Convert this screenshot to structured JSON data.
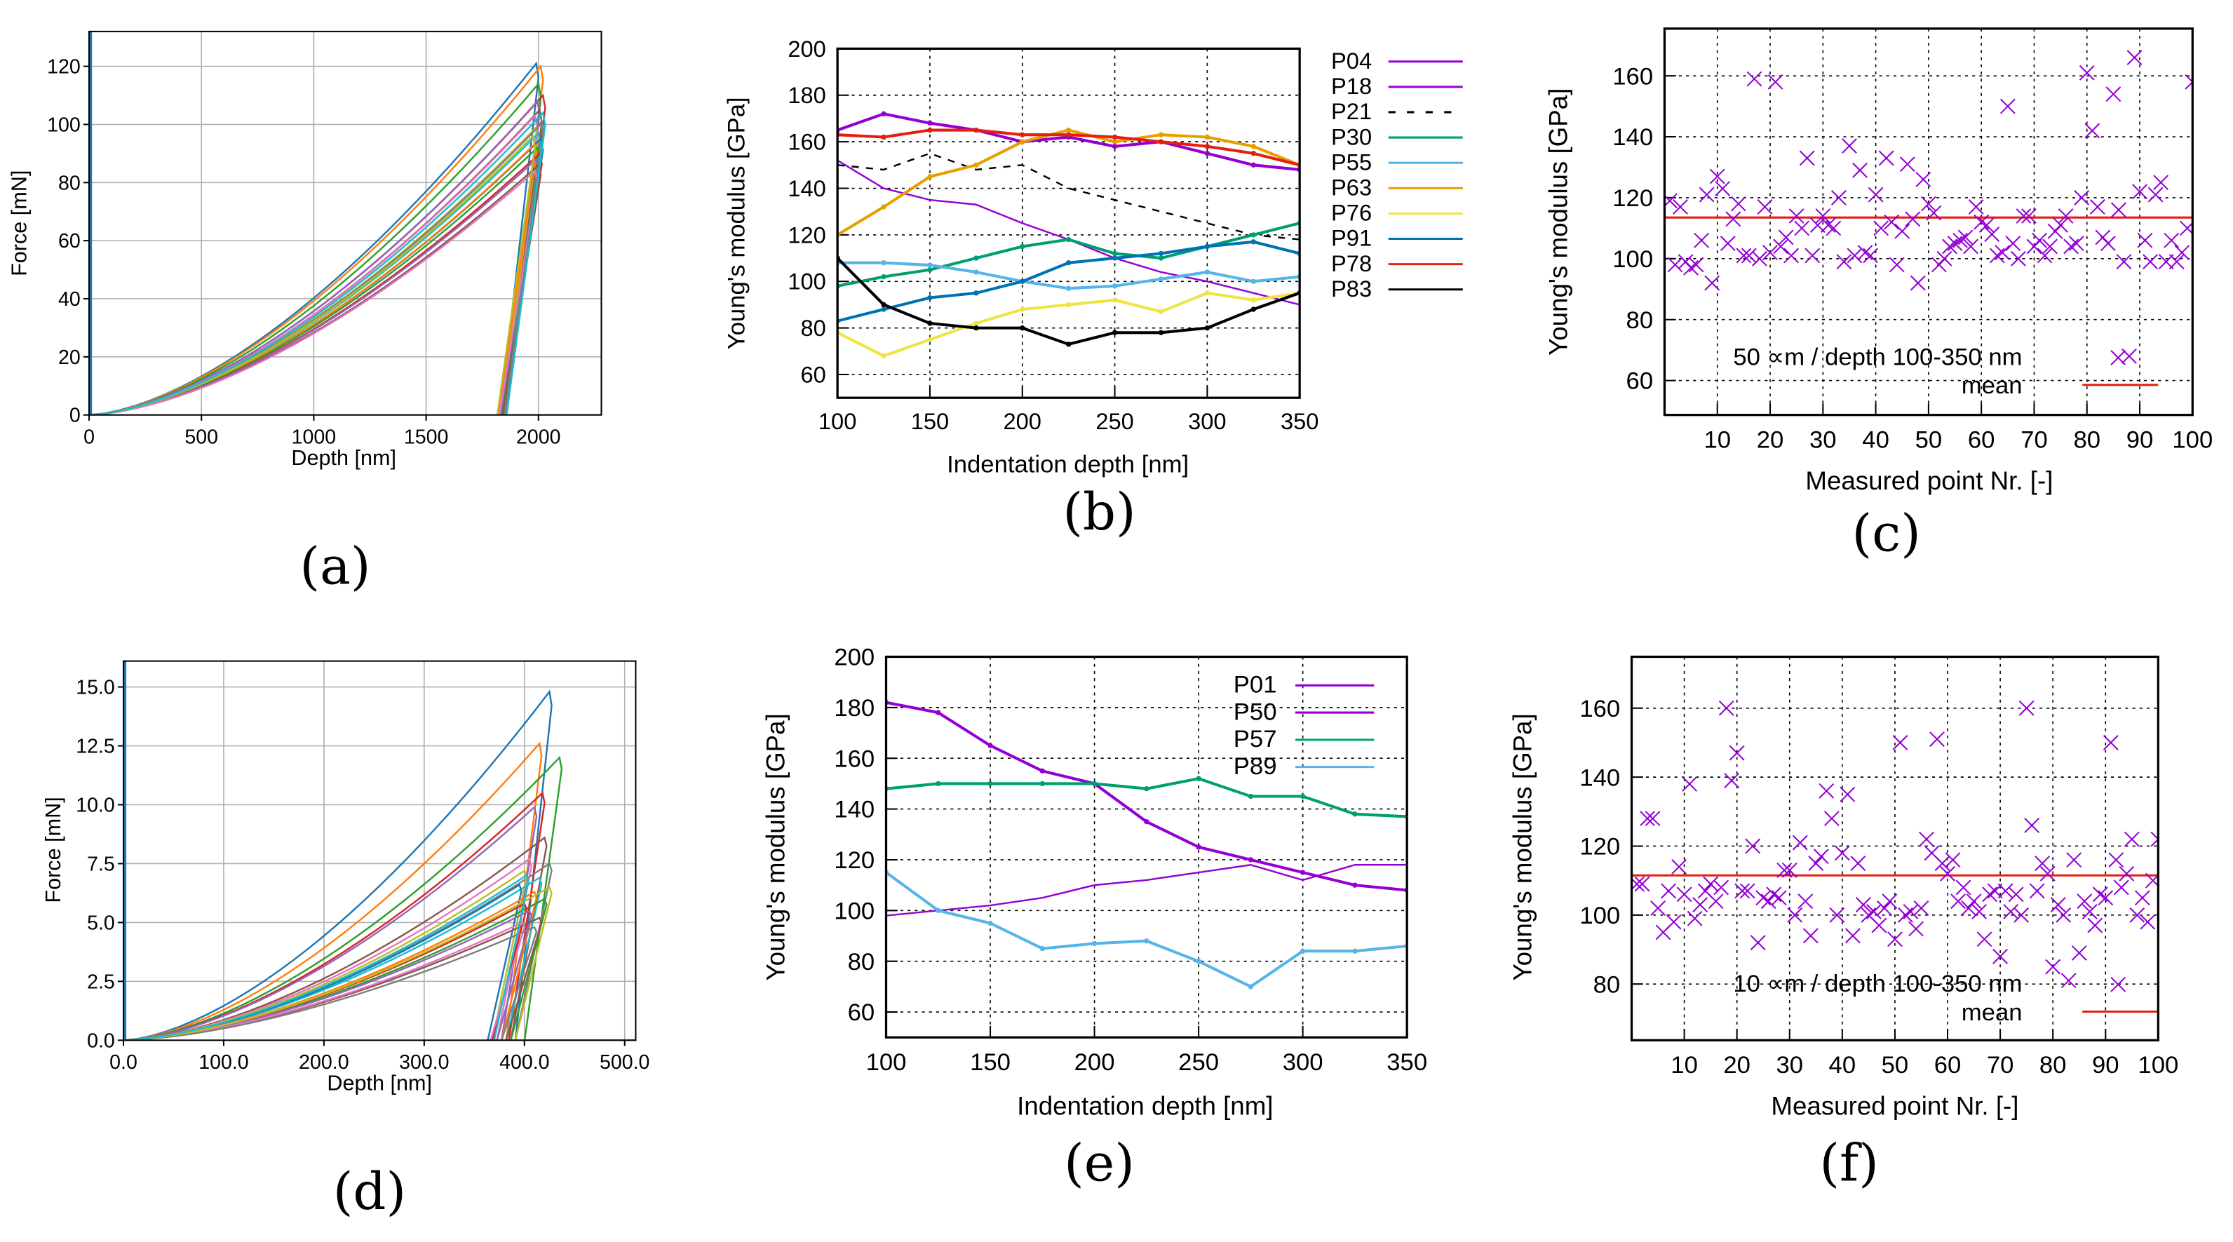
{
  "captions": [
    "(a)",
    "(b)",
    "(c)",
    "(d)",
    "(e)",
    "(f)"
  ],
  "chart_data": [
    {
      "id": "a",
      "type": "line",
      "title": "",
      "xlabel": "Depth [nm]",
      "ylabel": "Force [mN]",
      "xlim": [
        0,
        2280
      ],
      "ylim": [
        0,
        132
      ],
      "xticks": [
        0,
        500,
        1000,
        1500,
        2000
      ],
      "yticks": [
        0,
        20,
        40,
        60,
        80,
        100,
        120
      ],
      "grid": true,
      "colors": [
        "#1f77b4",
        "#ff7f0e",
        "#2ca02c",
        "#d62728",
        "#9467bd",
        "#8c564b",
        "#e377c2",
        "#7f7f7f",
        "#bcbd22",
        "#17becf"
      ],
      "curves": [
        {
          "dmax": 1990,
          "fmax": 121
        },
        {
          "dmax": 2010,
          "fmax": 120
        },
        {
          "dmax": 2000,
          "fmax": 114
        },
        {
          "dmax": 2020,
          "fmax": 110
        },
        {
          "dmax": 1995,
          "fmax": 108
        },
        {
          "dmax": 2005,
          "fmax": 105
        },
        {
          "dmax": 1985,
          "fmax": 103
        },
        {
          "dmax": 2015,
          "fmax": 101
        },
        {
          "dmax": 1990,
          "fmax": 99
        },
        {
          "dmax": 2000,
          "fmax": 97
        },
        {
          "dmax": 2010,
          "fmax": 95
        },
        {
          "dmax": 1980,
          "fmax": 93
        },
        {
          "dmax": 1995,
          "fmax": 92
        },
        {
          "dmax": 2005,
          "fmax": 90
        },
        {
          "dmax": 1990,
          "fmax": 88
        },
        {
          "dmax": 2000,
          "fmax": 86
        },
        {
          "dmax": 1985,
          "fmax": 84
        },
        {
          "dmax": 2010,
          "fmax": 100
        },
        {
          "dmax": 1975,
          "fmax": 96
        },
        {
          "dmax": 2020,
          "fmax": 104
        }
      ]
    },
    {
      "id": "b",
      "type": "line",
      "title": "",
      "xlabel": "Indentation depth [nm]",
      "ylabel": "Young's modulus [GPa]",
      "xlim": [
        100,
        350
      ],
      "ylim": [
        50,
        200
      ],
      "xticks": [
        100,
        150,
        200,
        250,
        300,
        350
      ],
      "yticks": [
        60,
        80,
        100,
        120,
        140,
        160,
        180,
        200
      ],
      "grid": true,
      "legend": "outside-right",
      "x": [
        100,
        125,
        150,
        175,
        200,
        225,
        250,
        275,
        300,
        325,
        350
      ],
      "series": [
        {
          "name": "P04",
          "color": "#9400d3",
          "marker": "none",
          "dash": false,
          "values": [
            152,
            140,
            135,
            133,
            125,
            118,
            110,
            104,
            100,
            95,
            90
          ]
        },
        {
          "name": "P18",
          "color": "#9400d3",
          "marker": "plus",
          "dash": false,
          "values": [
            165,
            172,
            168,
            165,
            160,
            162,
            158,
            160,
            155,
            150,
            148
          ]
        },
        {
          "name": "P21",
          "color": "#000000",
          "marker": "none",
          "dash": true,
          "values": [
            150,
            148,
            155,
            148,
            150,
            140,
            135,
            130,
            125,
            120,
            118
          ]
        },
        {
          "name": "P30",
          "color": "#009e73",
          "marker": "cross",
          "dash": false,
          "values": [
            98,
            102,
            105,
            110,
            115,
            118,
            112,
            110,
            115,
            120,
            125
          ]
        },
        {
          "name": "P55",
          "color": "#56b4e9",
          "marker": "star",
          "dash": false,
          "values": [
            108,
            108,
            107,
            104,
            100,
            97,
            98,
            101,
            104,
            100,
            102
          ]
        },
        {
          "name": "P63",
          "color": "#e69f00",
          "marker": "square",
          "dash": false,
          "values": [
            120,
            132,
            145,
            150,
            160,
            165,
            160,
            163,
            162,
            158,
            150
          ]
        },
        {
          "name": "P76",
          "color": "#f0e442",
          "marker": "filled-square",
          "dash": false,
          "values": [
            78,
            68,
            75,
            82,
            88,
            90,
            92,
            87,
            95,
            92,
            95
          ]
        },
        {
          "name": "P91",
          "color": "#0072b2",
          "marker": "circle",
          "dash": false,
          "values": [
            83,
            88,
            93,
            95,
            100,
            108,
            110,
            112,
            115,
            117,
            112
          ]
        },
        {
          "name": "P78",
          "color": "#e51e10",
          "marker": "dot",
          "dash": false,
          "values": [
            163,
            162,
            165,
            165,
            163,
            163,
            162,
            160,
            158,
            155,
            150
          ]
        },
        {
          "name": "P83",
          "color": "#000000",
          "marker": "triangle",
          "dash": false,
          "values": [
            110,
            90,
            82,
            80,
            80,
            73,
            78,
            78,
            80,
            88,
            95
          ]
        }
      ]
    },
    {
      "id": "c",
      "type": "scatter",
      "title": "",
      "xlabel": "Measured point Nr. [-]",
      "ylabel": "Young's modulus [GPa]",
      "xlim": [
        0,
        100
      ],
      "ylim": [
        48.7,
        175.5
      ],
      "xticks": [
        10,
        20,
        30,
        40,
        50,
        60,
        70,
        80,
        90,
        100
      ],
      "yticks": [
        60,
        80,
        100,
        120,
        140,
        160
      ],
      "grid": true,
      "legend": "bottom",
      "series_name": "50 ∝m / depth 100-350 nm",
      "mean_label": "mean",
      "mean": 113.5,
      "point_color": "#9400d3",
      "mean_color": "#e51e10",
      "values": [
        119,
        98,
        117,
        99,
        97,
        98,
        106,
        121,
        92,
        127,
        123,
        105,
        113,
        118,
        101,
        101,
        159,
        100,
        117,
        102,
        158,
        104,
        107,
        101,
        114,
        110,
        133,
        101,
        111,
        114,
        111,
        110,
        120,
        99,
        137,
        101,
        129,
        102,
        101,
        121,
        110,
        133,
        112,
        98,
        109,
        131,
        113,
        92,
        126,
        118,
        115,
        98,
        100,
        104,
        105,
        106,
        107,
        104,
        117,
        112,
        111,
        108,
        101,
        102,
        150,
        105,
        100,
        114,
        114,
        104,
        106,
        101,
        104,
        109,
        111,
        114,
        104,
        105,
        120,
        161,
        142,
        117,
        107,
        105,
        154,
        116,
        99,
        68,
        166,
        122,
        106,
        99,
        121,
        125,
        99,
        106,
        99,
        102,
        110,
        158
      ]
    },
    {
      "id": "d",
      "type": "line",
      "title": "",
      "xlabel": "Depth [nm]",
      "ylabel": "Force [mN]",
      "xlim": [
        0,
        511
      ],
      "ylim": [
        0,
        16.1
      ],
      "xticks": [
        0,
        100,
        200,
        300,
        400,
        500
      ],
      "yticks": [
        0,
        2.5,
        5,
        7.5,
        10,
        12.5,
        15
      ],
      "grid": true,
      "colors": [
        "#1f77b4",
        "#ff7f0e",
        "#2ca02c",
        "#d62728",
        "#9467bd",
        "#8c564b",
        "#e377c2",
        "#7f7f7f",
        "#bcbd22",
        "#17becf"
      ],
      "curves": [
        {
          "dmax": 425,
          "fmax": 14.8
        },
        {
          "dmax": 415,
          "fmax": 12.6
        },
        {
          "dmax": 435,
          "fmax": 12.0
        },
        {
          "dmax": 418,
          "fmax": 10.5
        },
        {
          "dmax": 410,
          "fmax": 9.9
        },
        {
          "dmax": 420,
          "fmax": 8.6
        },
        {
          "dmax": 405,
          "fmax": 7.7
        },
        {
          "dmax": 425,
          "fmax": 7.5
        },
        {
          "dmax": 400,
          "fmax": 7.2
        },
        {
          "dmax": 415,
          "fmax": 6.9
        },
        {
          "dmax": 395,
          "fmax": 6.6
        },
        {
          "dmax": 410,
          "fmax": 6.3
        },
        {
          "dmax": 420,
          "fmax": 6.0
        },
        {
          "dmax": 400,
          "fmax": 5.8
        },
        {
          "dmax": 405,
          "fmax": 5.5
        },
        {
          "dmax": 415,
          "fmax": 5.2
        },
        {
          "dmax": 398,
          "fmax": 5.0
        },
        {
          "dmax": 410,
          "fmax": 4.8
        },
        {
          "dmax": 425,
          "fmax": 6.5
        },
        {
          "dmax": 402,
          "fmax": 7.0
        }
      ]
    },
    {
      "id": "e",
      "type": "line",
      "title": "",
      "xlabel": "Indentation depth [nm]",
      "ylabel": "Young's modulus [GPa]",
      "xlim": [
        100,
        350
      ],
      "ylim": [
        50,
        200
      ],
      "xticks": [
        100,
        150,
        200,
        250,
        300,
        350
      ],
      "yticks": [
        60,
        80,
        100,
        120,
        140,
        160,
        180,
        200
      ],
      "grid": true,
      "legend": "top-right",
      "x": [
        100,
        125,
        150,
        175,
        200,
        225,
        250,
        275,
        300,
        325,
        350
      ],
      "series": [
        {
          "name": "P01",
          "color": "#9400d3",
          "marker": "none",
          "dash": false,
          "values": [
            98,
            100,
            102,
            105,
            110,
            112,
            115,
            118,
            112,
            118,
            118
          ]
        },
        {
          "name": "P50",
          "color": "#9400d3",
          "marker": "plus",
          "dash": false,
          "values": [
            182,
            178,
            165,
            155,
            150,
            135,
            125,
            120,
            115,
            110,
            108
          ]
        },
        {
          "name": "P57",
          "color": "#009e73",
          "marker": "cross",
          "dash": false,
          "values": [
            148,
            150,
            150,
            150,
            150,
            148,
            152,
            145,
            145,
            138,
            137
          ]
        },
        {
          "name": "P89",
          "color": "#56b4e9",
          "marker": "star",
          "dash": false,
          "values": [
            115,
            100,
            95,
            85,
            87,
            88,
            80,
            70,
            84,
            84,
            86
          ]
        }
      ]
    },
    {
      "id": "f",
      "type": "scatter",
      "title": "",
      "xlabel": "Measured point Nr. [-]",
      "ylabel": "Young's modulus [GPa]",
      "xlim": [
        0,
        100
      ],
      "ylim": [
        63.7,
        174.9
      ],
      "xticks": [
        10,
        20,
        30,
        40,
        50,
        60,
        70,
        80,
        90,
        100
      ],
      "yticks": [
        80,
        100,
        120,
        140,
        160
      ],
      "grid": true,
      "legend": "bottom",
      "series_name": "10 ∝m / depth 100-350 nm",
      "mean_label": "mean",
      "mean": 111.5,
      "point_color": "#9400d3",
      "mean_color": "#e51e10",
      "values": [
        109,
        109,
        128,
        128,
        102,
        95,
        107,
        98,
        114,
        106,
        138,
        99,
        103,
        107,
        109,
        104,
        108,
        160,
        139,
        147,
        107,
        107,
        120,
        92,
        105,
        104,
        106,
        105,
        113,
        113,
        100,
        121,
        104,
        94,
        115,
        117,
        136,
        128,
        100,
        118,
        135,
        94,
        115,
        103,
        100,
        101,
        97,
        102,
        104,
        93,
        150,
        100,
        101,
        96,
        102,
        122,
        118,
        151,
        115,
        112,
        116,
        104,
        108,
        102,
        104,
        101,
        93,
        106,
        107,
        88,
        107,
        101,
        106,
        100,
        160,
        126,
        107,
        115,
        112,
        85,
        103,
        100,
        81,
        116,
        89,
        104,
        101,
        97,
        106,
        105,
        150,
        116,
        108,
        112,
        122,
        100,
        105,
        98,
        110,
        122
      ]
    }
  ]
}
